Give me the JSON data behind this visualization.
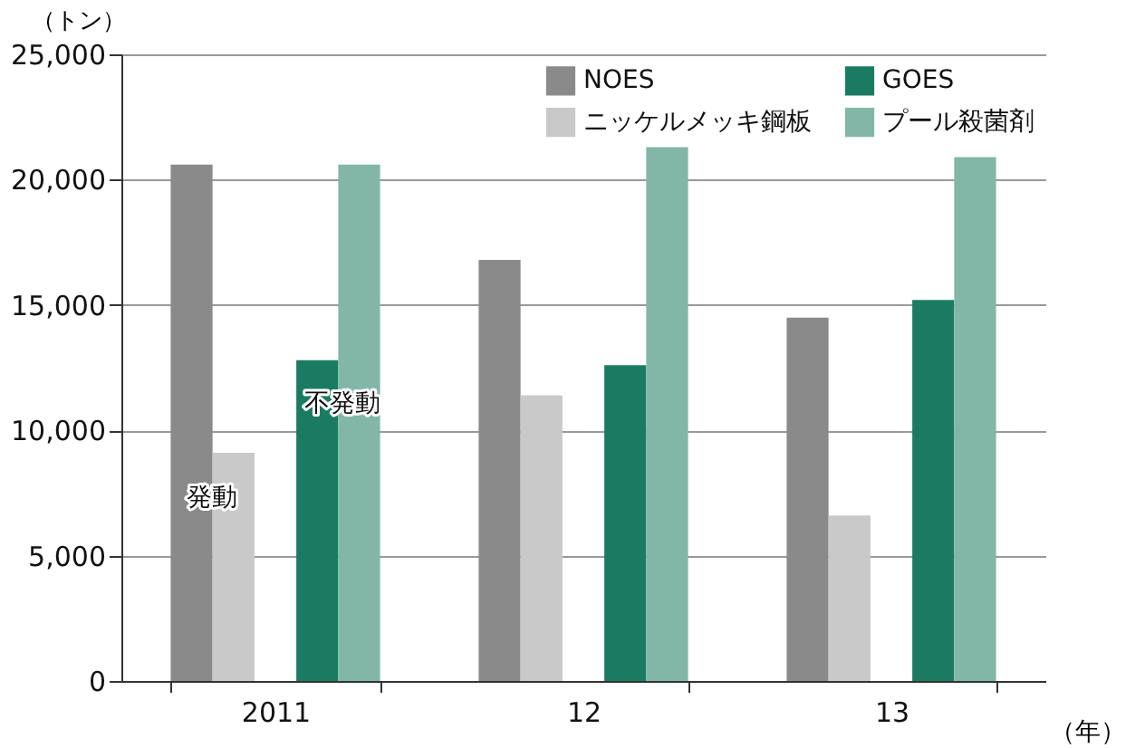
{
  "chart_data": {
    "type": "bar",
    "ylabel": "（トン）",
    "xlabel": "（年）",
    "categories": [
      "2011",
      "12",
      "13"
    ],
    "series": [
      {
        "name": "NOES",
        "color": "#8a8a8a",
        "values": [
          20600,
          16800,
          14500
        ]
      },
      {
        "name": "ニッケルメッキ鋼板",
        "color": "#c8c9c8",
        "values": [
          9100,
          11400,
          6600
        ]
      },
      {
        "name": "GOES",
        "color": "#1b7b62",
        "values": [
          12800,
          12600,
          15200
        ]
      },
      {
        "name": "プール殺菌剤",
        "color": "#82b7a8",
        "values": [
          20600,
          21300,
          20900
        ]
      }
    ],
    "ylim": [
      0,
      25000
    ],
    "yticks": [
      0,
      {
        "value": 5000,
        "label": "5,000"
      },
      {
        "value": 10000,
        "label": "10,000"
      },
      {
        "value": 15000,
        "label": "15,000"
      },
      {
        "value": 20000,
        "label": "20,000"
      },
      {
        "value": 25000,
        "label": "25,000"
      }
    ],
    "grid": "y",
    "legend": "top right",
    "annotations": [
      "発動",
      "不発動"
    ]
  }
}
